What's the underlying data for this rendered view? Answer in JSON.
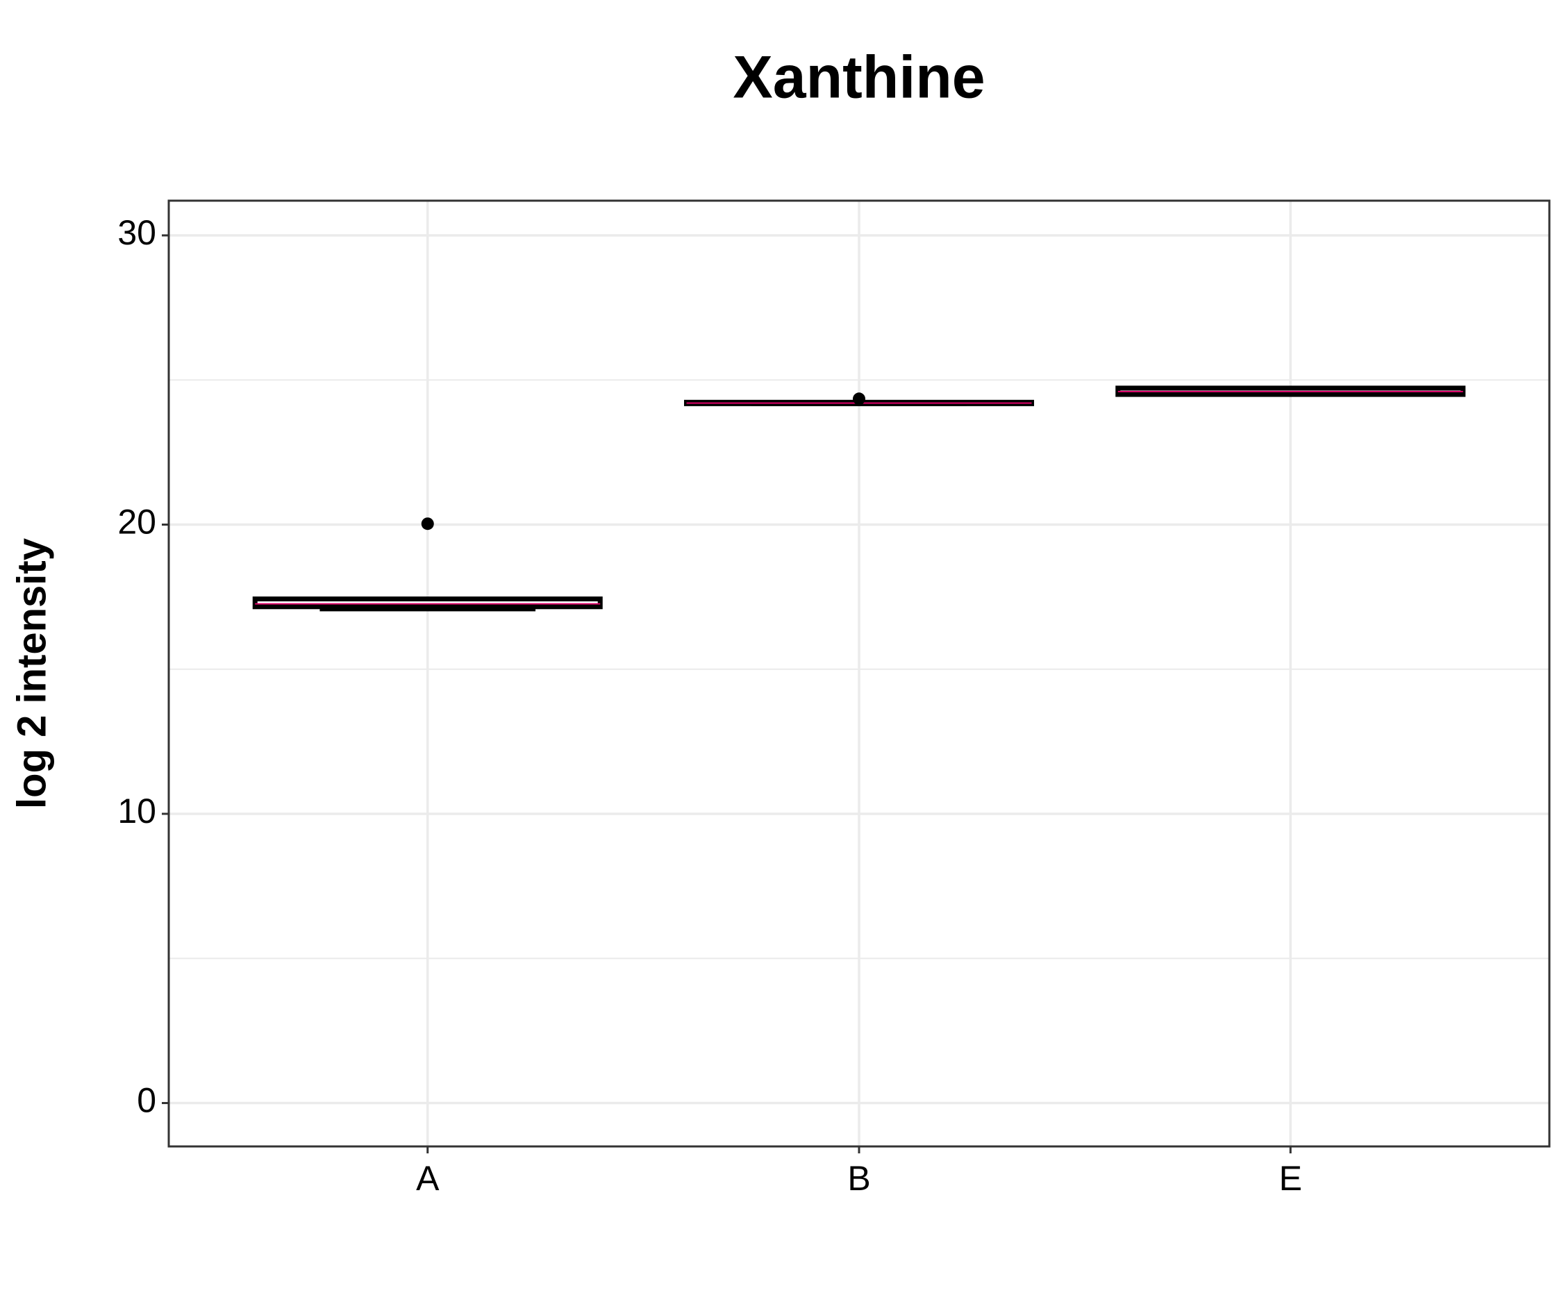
{
  "chart_data": {
    "type": "box",
    "title": "Xanthine",
    "y_label": "log 2 intensity",
    "categories": [
      "A",
      "B",
      "E"
    ],
    "boxes": [
      {
        "min": 17.05,
        "q1": 17.16,
        "median": 17.26,
        "q3": 17.43,
        "max": 17.43,
        "outliers": [
          20.03
        ]
      },
      {
        "min": 24.15,
        "q1": 24.18,
        "median": 24.2,
        "q3": 24.23,
        "max": 24.25,
        "outliers": [
          24.35
        ]
      },
      {
        "min": 24.49,
        "q1": 24.5,
        "median": 24.6,
        "q3": 24.72,
        "max": 24.73,
        "outliers": []
      }
    ],
    "box_color": "#000000",
    "median_color": "#e0006a",
    "ylim": [
      -1.5,
      31.2
    ],
    "yticks": [
      0,
      10,
      20,
      30
    ],
    "minor_yticks": [
      5,
      15,
      25
    ],
    "grid": true
  }
}
